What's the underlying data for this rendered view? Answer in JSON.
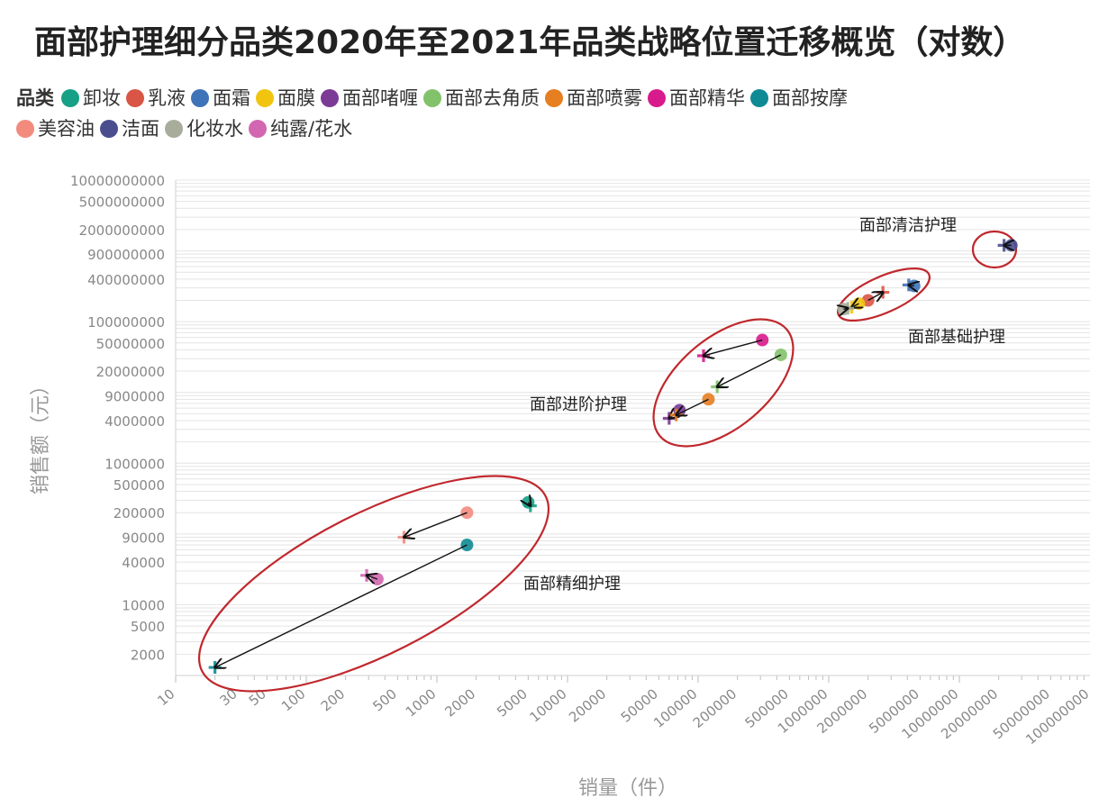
{
  "chart_data": {
    "type": "scatter",
    "title": "面部护理细分品类2020年至2021年品类战略位置迁移概览（对数）",
    "xlabel": "销量（件）",
    "ylabel": "销售额（元）",
    "xscale": "log",
    "yscale": "log",
    "xlim": [
      10,
      100000000
    ],
    "ylim": [
      1000,
      10000000000
    ],
    "legend_title": "品类",
    "legend_placement": "top",
    "x_ticks": [
      "10",
      "30",
      "50",
      "100",
      "200",
      "500",
      "1000",
      "2000",
      "5000",
      "10000",
      "20000",
      "50000",
      "100000",
      "200000",
      "500000",
      "1000000",
      "2000000",
      "5000000",
      "10000000",
      "20000000",
      "50000000",
      "100000000"
    ],
    "y_ticks": [
      "10000000000",
      "5000000000",
      "2000000000",
      "900000000",
      "400000000",
      "100000000",
      "50000000",
      "20000000",
      "9000000",
      "4000000",
      "1000000",
      "500000",
      "200000",
      "90000",
      "40000",
      "10000",
      "5000",
      "2000"
    ],
    "markers": {
      "from": "circle (2020)",
      "to": "plus (2021)"
    },
    "series": [
      {
        "name": "卸妆",
        "color": "#16a085",
        "from": [
          5000,
          280000
        ],
        "to": [
          5200,
          250000
        ]
      },
      {
        "name": "乳液",
        "color": "#d95545",
        "from": [
          2000000,
          200000000
        ],
        "to": [
          2600000,
          260000000
        ]
      },
      {
        "name": "面霜",
        "color": "#3f73b8",
        "from": [
          4500000,
          320000000
        ],
        "to": [
          4100000,
          330000000
        ]
      },
      {
        "name": "面膜",
        "color": "#f1c40f",
        "from": [
          1700000,
          180000000
        ],
        "to": [
          1500000,
          160000000
        ]
      },
      {
        "name": "面部啫喱",
        "color": "#7b3a96",
        "from": [
          72000,
          5600000
        ],
        "to": [
          60000,
          4300000
        ]
      },
      {
        "name": "面部去角质",
        "color": "#82c26a",
        "from": [
          430000,
          34000000
        ],
        "to": [
          140000,
          12000000
        ]
      },
      {
        "name": "面部喷雾",
        "color": "#e67e22",
        "from": [
          120000,
          8000000
        ],
        "to": [
          68000,
          4800000
        ]
      },
      {
        "name": "面部精华",
        "color": "#d81b8c",
        "from": [
          310000,
          55000000
        ],
        "to": [
          110000,
          33000000
        ]
      },
      {
        "name": "面部按摩",
        "color": "#0e8a94",
        "from": [
          1700,
          70000
        ],
        "to": [
          20,
          1300
        ]
      },
      {
        "name": "美容油",
        "color": "#f28b7e",
        "from": [
          1700,
          200000
        ],
        "to": [
          560,
          90000
        ]
      },
      {
        "name": "洁面",
        "color": "#4a4e8f",
        "from": [
          25000000,
          1200000000
        ],
        "to": [
          22000000,
          1200000000
        ]
      },
      {
        "name": "化妆水",
        "color": "#a8ad9b",
        "from": [
          1300000,
          150000000
        ],
        "to": [
          1400000,
          155000000
        ]
      },
      {
        "name": "纯露/花水",
        "color": "#d266b0",
        "from": [
          350,
          23000
        ],
        "to": [
          290,
          26000
        ]
      }
    ],
    "annotations": [
      {
        "text": "面部清洁护理",
        "members": [
          "洁面"
        ]
      },
      {
        "text": "面部基础护理",
        "members": [
          "乳液",
          "面霜",
          "面膜",
          "化妆水"
        ]
      },
      {
        "text": "面部进阶护理",
        "members": [
          "面部啫喱",
          "面部去角质",
          "面部喷雾",
          "面部精华"
        ]
      },
      {
        "text": "面部精细护理",
        "members": [
          "卸妆",
          "面部按摩",
          "美容油",
          "纯露/花水"
        ]
      }
    ]
  }
}
